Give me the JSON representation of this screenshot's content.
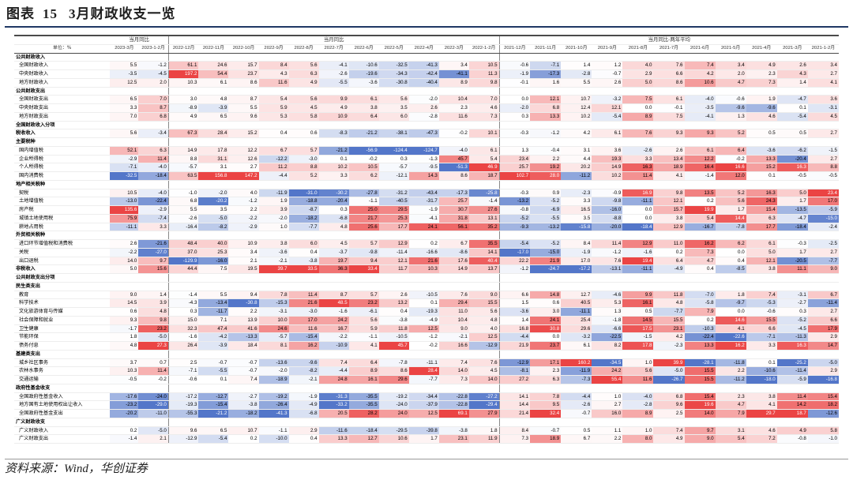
{
  "figure": {
    "label": "图表",
    "number": "15",
    "title": "3月财政收支一览"
  },
  "source": "资料来源：Wind，华创证券",
  "header": {
    "unit": "单位：%",
    "group_labels": [
      "当月同比",
      "当月同比",
      "当月同比-两年平均"
    ],
    "cols_a": [
      "2023-3月",
      "2023-1-2月"
    ],
    "cols_b": [
      "2022-12月",
      "2022-11月",
      "2022-10月",
      "2022-9月",
      "2022-8月",
      "2022-7月",
      "2022-6月",
      "2022-5月",
      "2022-4月",
      "2022-3月",
      "2022-1-2月"
    ],
    "cols_c": [
      "2021-12月",
      "2021-11月",
      "2021-10月",
      "2021-9月",
      "2021-8月",
      "2021-7月",
      "2021-6月",
      "2021-5月",
      "2021-4月",
      "2021-3月",
      "2021-1-2月"
    ]
  },
  "rows": [
    {
      "label": "公共财政收入",
      "type": "sec",
      "v": []
    },
    {
      "label": "全国财政收入",
      "type": "sub",
      "v": [
        "5.5",
        "-1.2",
        "61.1",
        "24.6",
        "15.7",
        "8.4",
        "5.6",
        "-4.1",
        "-10.6",
        "-32.5",
        "-41.3",
        "3.4",
        "10.5",
        "-0.6",
        "-7.1",
        "1.4",
        "1.2",
        "4.0",
        "7.6",
        "7.4",
        "3.4",
        "4.9",
        "2.6",
        "3.4"
      ]
    },
    {
      "label": "中央财政收入",
      "type": "sub",
      "v": [
        "-3.5",
        "-4.5",
        "197.2",
        "54.4",
        "23.7",
        "4.3",
        "6.3",
        "-2.6",
        "-19.6",
        "-34.3",
        "-42.4",
        "-41.1",
        "11.3",
        "-1.9",
        "-17.3",
        "-2.8",
        "-0.7",
        "2.9",
        "6.6",
        "4.2",
        "2.0",
        "2.3",
        "4.3",
        "2.7"
      ]
    },
    {
      "label": "地方财政收入",
      "type": "sub",
      "v": [
        "12.5",
        "2.0",
        "10.3",
        "6.1",
        "8.6",
        "11.6",
        "4.9",
        "-5.5",
        "-3.6",
        "-30.8",
        "-40.4",
        "8.9",
        "9.8",
        "-0.1",
        "1.6",
        "5.5",
        "2.6",
        "5.0",
        "8.6",
        "10.6",
        "4.7",
        "7.3",
        "1.4",
        "4.1"
      ]
    },
    {
      "label": "公共财政支出",
      "type": "sec",
      "v": []
    },
    {
      "label": "全国财政支出",
      "type": "sub",
      "v": [
        "6.5",
        "7.0",
        "3.0",
        "4.8",
        "8.7",
        "5.4",
        "5.6",
        "9.9",
        "6.1",
        "5.6",
        "-2.0",
        "10.4",
        "7.0",
        "0.0",
        "12.1",
        "10.7",
        "-3.2",
        "7.5",
        "6.1",
        "-4.0",
        "-0.6",
        "1.9",
        "-4.7",
        "3.6"
      ]
    },
    {
      "label": "中央财政支出",
      "type": "sub",
      "v": [
        "3.3",
        "8.7",
        "-8.9",
        "-3.9",
        "5.5",
        "5.9",
        "4.5",
        "4.9",
        "3.8",
        "3.5",
        "2.6",
        "2.3",
        "4.6",
        "-2.0",
        "6.8",
        "12.4",
        "12.1",
        "0.0",
        "-0.1",
        "-3.5",
        "-9.6",
        "-9.6",
        "0.1",
        "-3.1"
      ]
    },
    {
      "label": "地方财政支出",
      "type": "sub",
      "v": [
        "7.0",
        "6.8",
        "4.9",
        "6.5",
        "9.6",
        "5.3",
        "5.8",
        "10.9",
        "6.4",
        "6.0",
        "-2.8",
        "11.6",
        "7.3",
        "0.3",
        "13.3",
        "10.2",
        "-5.4",
        "8.9",
        "7.5",
        "-4.1",
        "1.3",
        "4.6",
        "-5.4",
        "4.5"
      ]
    },
    {
      "label": "全国财政收入分项",
      "type": "sec",
      "v": []
    },
    {
      "label": "税收收入",
      "type": "sec",
      "v": [
        "5.6",
        "-3.4",
        "67.3",
        "28.4",
        "15.2",
        "0.4",
        "0.6",
        "-8.3",
        "-21.2",
        "-38.1",
        "-47.3",
        "-0.2",
        "10.1",
        "-0.3",
        "-1.2",
        "4.2",
        "6.1",
        "7.6",
        "9.3",
        "9.3",
        "5.2",
        "0.5",
        "0.5",
        "2.7"
      ]
    },
    {
      "label": "主要税种",
      "type": "sec",
      "v": []
    },
    {
      "label": "国内增值税",
      "type": "sub",
      "v": [
        "52.1",
        "6.3",
        "14.9",
        "17.8",
        "12.2",
        "6.7",
        "5.7",
        "-21.2",
        "-56.9",
        "-124.4",
        "-124.7",
        "-4.0",
        "6.1",
        "1.3",
        "-0.4",
        "3.1",
        "3.6",
        "-2.6",
        "2.6",
        "6.1",
        "6.4",
        "-3.6",
        "-6.2",
        "-1.5"
      ]
    },
    {
      "label": "企业所得税",
      "type": "sub",
      "v": [
        "-2.9",
        "11.4",
        "8.8",
        "31.1",
        "12.6",
        "-12.2",
        "-3.0",
        "0.1",
        "-0.2",
        "0.3",
        "-1.3",
        "45.7",
        "5.4",
        "23.4",
        "2.2",
        "4.4",
        "19.3",
        "3.3",
        "13.4",
        "12.2",
        "-0.2",
        "13.3",
        "-20.4",
        "2.7"
      ]
    },
    {
      "label": "个人所得税",
      "type": "sub",
      "v": [
        "-7.1",
        "-4.0",
        "-5.7",
        "3.1",
        "2.7",
        "11.2",
        "8.8",
        "10.2",
        "10.5",
        "-5.7",
        "-9.5",
        "-51.3",
        "46.9",
        "25.7",
        "19.2",
        "20.2",
        "14.9",
        "16.3",
        "18.9",
        "16.4",
        "16.6",
        "15.2",
        "16.3",
        "8.8"
      ]
    },
    {
      "label": "国内消费税",
      "type": "sub",
      "v": [
        "-32.5",
        "-18.4",
        "63.5",
        "156.8",
        "147.2",
        "-4.4",
        "5.2",
        "3.3",
        "6.2",
        "-12.1",
        "14.3",
        "8.6",
        "18.7",
        "102.7",
        "28.0",
        "-11.2",
        "10.2",
        "11.4",
        "4.1",
        "-1.4",
        "12.0",
        "0.1",
        "-0.5",
        "-0.5"
      ]
    },
    {
      "label": "地产相关税种",
      "type": "sec",
      "v": []
    },
    {
      "label": "契税",
      "type": "sub",
      "v": [
        "10.5",
        "-4.0",
        "-1.0",
        "-2.0",
        "4.0",
        "-11.9",
        "-31.0",
        "-30.2",
        "-27.8",
        "-31.2",
        "-43.4",
        "-17.3",
        "-25.8",
        "-0.3",
        "0.9",
        "-2.3",
        "-0.9",
        "16.9",
        "9.8",
        "13.5",
        "5.2",
        "16.3",
        "5.0",
        "23.4"
      ]
    },
    {
      "label": "土地增值税",
      "type": "sub",
      "v": [
        "-13.0",
        "-22.4",
        "6.8",
        "-20.2",
        "-1.2",
        "1.9",
        "-18.8",
        "-20.4",
        "-1.1",
        "-40.5",
        "-31.7",
        "25.7",
        "-1.4",
        "-13.2",
        "-5.2",
        "3.3",
        "-9.8",
        "-11.1",
        "12.1",
        "0.2",
        "5.6",
        "24.3",
        "1.7",
        "17.0"
      ]
    },
    {
      "label": "房产税",
      "type": "sub",
      "v": [
        "135.6",
        "-2.9",
        "5.5",
        "3.5",
        "2.2",
        "3.9",
        "-8.7",
        "0.3",
        "25.0",
        "29.5",
        "-1.9",
        "30.7",
        "27.6",
        "-0.8",
        "-6.9",
        "16.5",
        "-16.0",
        "0.0",
        "15.7",
        "19.9",
        "1.7",
        "15.4",
        "-13.5",
        "-5.9"
      ]
    },
    {
      "label": "城镇土地使用税",
      "type": "sub",
      "v": [
        "75.9",
        "-7.4",
        "-2.6",
        "-5.0",
        "-2.2",
        "-2.0",
        "-18.2",
        "-6.8",
        "21.7",
        "25.3",
        "-4.1",
        "31.8",
        "13.1",
        "-5.2",
        "-5.5",
        "3.5",
        "-8.8",
        "0.0",
        "3.8",
        "5.4",
        "14.4",
        "6.3",
        "-4.7",
        "-15.0"
      ]
    },
    {
      "label": "耕地占用税",
      "type": "sub",
      "v": [
        "-11.1",
        "3.3",
        "-16.4",
        "-8.2",
        "-2.9",
        "1.0",
        "-7.7",
        "4.8",
        "25.6",
        "17.7",
        "24.1",
        "56.1",
        "35.2",
        "-9.3",
        "-13.2",
        "-15.8",
        "-20.0",
        "-18.4",
        "12.9",
        "-16.7",
        "-7.8",
        "17.7",
        "-18.4",
        "-2.4"
      ]
    },
    {
      "label": "外贸相关税种",
      "type": "sec",
      "v": []
    },
    {
      "label": "进口环节增值税和消费税",
      "type": "sub",
      "v": [
        "2.6",
        "-21.6",
        "48.4",
        "40.0",
        "10.9",
        "3.8",
        "6.0",
        "4.5",
        "5.7",
        "12.9",
        "0.2",
        "6.7",
        "35.5",
        "-5.4",
        "-5.2",
        "8.4",
        "11.4",
        "12.9",
        "11.0",
        "16.2",
        "6.2",
        "6.1",
        "-0.3",
        "-2.5"
      ]
    },
    {
      "label": "关税",
      "type": "sub",
      "v": [
        "-2.2",
        "-27.0",
        "37.0",
        "25.3",
        "3.4",
        "-3.6",
        "0.4",
        "-3.7",
        "-9.8",
        "-11.4",
        "-16.6",
        "-8.6",
        "14.1",
        "-17.0",
        "-15.0",
        "-1.9",
        "-1.2",
        "-1.6",
        "0.2",
        "7.3",
        "0.0",
        "5.0",
        "1.7",
        "2.7"
      ]
    },
    {
      "label": "出口退税",
      "type": "sub",
      "v": [
        "14.0",
        "9.7",
        "-129.9",
        "-16.0",
        "2.1",
        "-2.1",
        "-3.8",
        "19.7",
        "9.4",
        "12.1",
        "21.6",
        "17.6",
        "40.4",
        "22.2",
        "21.9",
        "17.0",
        "7.6",
        "19.4",
        "6.4",
        "4.7",
        "0.4",
        "12.1",
        "-20.5",
        "-7.7"
      ]
    },
    {
      "label": "非税收入",
      "type": "sec",
      "v": [
        "5.0",
        "15.6",
        "44.4",
        "7.5",
        "19.5",
        "39.7",
        "33.5",
        "36.3",
        "33.4",
        "11.7",
        "10.3",
        "14.9",
        "13.7",
        "-1.2",
        "-24.7",
        "-17.2",
        "-13.1",
        "-11.1",
        "-4.9",
        "0.4",
        "-8.5",
        "3.8",
        "11.1",
        "9.0"
      ]
    },
    {
      "label": "公共财政支出分项",
      "type": "sec",
      "v": []
    },
    {
      "label": "民生类支出",
      "type": "sec",
      "v": []
    },
    {
      "label": "教育",
      "type": "sub",
      "v": [
        "9.0",
        "1.4",
        "-1.4",
        "5.5",
        "9.4",
        "7.8",
        "11.4",
        "8.7",
        "5.7",
        "2.6",
        "-10.5",
        "7.6",
        "9.0",
        "6.6",
        "14.8",
        "12.7",
        "-4.6",
        "9.9",
        "11.8",
        "-7.0",
        "1.8",
        "7.4",
        "-3.1",
        "6.7"
      ]
    },
    {
      "label": "科学技术",
      "type": "sub",
      "v": [
        "14.5",
        "3.9",
        "-4.3",
        "-13.4",
        "-30.8",
        "-15.3",
        "21.6",
        "48.5",
        "23.2",
        "13.2",
        "0.1",
        "29.4",
        "15.5",
        "1.5",
        "0.6",
        "40.5",
        "5.3",
        "16.1",
        "4.8",
        "-5.8",
        "-9.7",
        "-5.3",
        "-2.7",
        "-11.4"
      ]
    },
    {
      "label": "文化旅游体育与传媒",
      "type": "sub",
      "v": [
        "0.6",
        "4.8",
        "0.3",
        "-11.7",
        "2.2",
        "-3.1",
        "-3.0",
        "-1.6",
        "-6.1",
        "0.4",
        "-19.3",
        "11.0",
        "5.6",
        "-3.6",
        "3.0",
        "-11.1",
        "1.3",
        "0.5",
        "-7.7",
        "7.9",
        "0.0",
        "-0.6",
        "0.3",
        "2.7"
      ]
    },
    {
      "label": "社会保障和就业",
      "type": "sub",
      "v": [
        "9.3",
        "9.8",
        "15.0",
        "7.1",
        "13.9",
        "10.0",
        "17.0",
        "24.2",
        "5.6",
        "-3.8",
        "-4.9",
        "10.4",
        "4.8",
        "1.4",
        "24.1",
        "25.4",
        "-1.8",
        "14.5",
        "15.5",
        "0.2",
        "14.6",
        "15.5",
        "-5.2",
        "6.6"
      ]
    },
    {
      "label": "卫生健康",
      "type": "sub",
      "v": [
        "-1.7",
        "23.2",
        "32.3",
        "47.4",
        "41.6",
        "24.6",
        "11.6",
        "16.7",
        "5.9",
        "11.8",
        "12.5",
        "9.0",
        "4.0",
        "16.8",
        "30.8",
        "29.6",
        "-6.6",
        "17.5",
        "23.1",
        "-10.3",
        "4.1",
        "6.6",
        "-4.5",
        "17.9"
      ]
    },
    {
      "label": "节能环保",
      "type": "sub",
      "v": [
        "1.8",
        "-5.0",
        "-1.6",
        "-4.2",
        "-13.3",
        "-5.7",
        "-15.4",
        "-2.2",
        "-1.1",
        "-10.5",
        "-1.2",
        "-2.1",
        "12.5",
        "-4.4",
        "0.0",
        "-3.2",
        "-22.5",
        "-1.5",
        "4.2",
        "-22.4",
        "-22.6",
        "-7.1",
        "-11.3",
        "2.9"
      ]
    },
    {
      "label": "债务付息",
      "type": "sub",
      "v": [
        "4.8",
        "27.3",
        "26.4",
        "-3.9",
        "18.4",
        "8.1",
        "16.2",
        "-10.9",
        "4.1",
        "45.7",
        "-0.2",
        "16.6",
        "-12.9",
        "21.9",
        "23.7",
        "6.1",
        "8.2",
        "17.8",
        "-2.3",
        "13.3",
        "16.2",
        "3.3",
        "16.3",
        "14.7"
      ]
    },
    {
      "label": "基建类支出",
      "type": "sec",
      "v": []
    },
    {
      "label": "城乡社区事务",
      "type": "sub",
      "v": [
        "3.7",
        "0.7",
        "2.5",
        "-0.7",
        "-0.7",
        "-13.6",
        "-9.6",
        "7.4",
        "6.4",
        "-7.8",
        "-11.1",
        "7.4",
        "7.6",
        "-12.9",
        "17.1",
        "160.2",
        "-34.5",
        "1.0",
        "39.9",
        "-28.1",
        "-11.8",
        "0.1",
        "-25.2",
        "-5.0"
      ]
    },
    {
      "label": "农林水事务",
      "type": "sub",
      "v": [
        "10.3",
        "11.4",
        "-7.1",
        "-5.5",
        "-0.7",
        "-2.0",
        "-8.2",
        "-4.4",
        "8.9",
        "8.6",
        "28.4",
        "14.0",
        "4.5",
        "-8.1",
        "2.3",
        "-11.9",
        "24.2",
        "5.6",
        "-5.0",
        "15.5",
        "2.2",
        "-10.6",
        "-11.4",
        "2.9"
      ]
    },
    {
      "label": "交通运输",
      "type": "sub",
      "v": [
        "-0.5",
        "-0.2",
        "-0.6",
        "0.1",
        "7.4",
        "-18.9",
        "-2.1",
        "24.8",
        "16.1",
        "29.6",
        "-7.7",
        "7.3",
        "14.0",
        "27.2",
        "6.3",
        "-7.3",
        "55.4",
        "11.6",
        "-26.7",
        "15.5",
        "-11.2",
        "-18.0",
        "-5.9",
        "-16.8"
      ]
    },
    {
      "label": "政府性基金收支",
      "type": "sec",
      "v": []
    },
    {
      "label": "全国政府性基金收入",
      "type": "sub",
      "v": [
        "-17.6",
        "-24.0",
        "-17.2",
        "-12.7",
        "-2.7",
        "-19.2",
        "-1.9",
        "-31.3",
        "-35.5",
        "-19.2",
        "-34.4",
        "-22.8",
        "-27.2",
        "14.1",
        "7.8",
        "-4.4",
        "1.0",
        "-4.0",
        "6.8",
        "15.4",
        "2.3",
        "3.8",
        "11.4",
        "15.4"
      ]
    },
    {
      "label": "地方国有土地使用权出让收入",
      "type": "sub",
      "v": [
        "-23.2",
        "-29.0",
        "-19.3",
        "-15.4",
        "-3.8",
        "-26.4",
        "-4.9",
        "-33.2",
        "-35.5",
        "-24.0",
        "-37.9",
        "-22.8",
        "-29.4",
        "14.4",
        "9.5",
        "-2.6",
        "2.7",
        "-2.8",
        "9.6",
        "19.6",
        "4.7",
        "4.1",
        "14.2",
        "18.2"
      ]
    },
    {
      "label": "全国政府性基金支出",
      "type": "sub",
      "v": [
        "-20.2",
        "-11.0",
        "-55.3",
        "-21.2",
        "-18.2",
        "-41.3",
        "-6.8",
        "20.5",
        "28.2",
        "24.0",
        "12.5",
        "69.1",
        "27.9",
        "21.4",
        "32.4",
        "-0.7",
        "16.0",
        "8.9",
        "2.5",
        "14.0",
        "7.9",
        "29.7",
        "18.7",
        "-12.6"
      ]
    },
    {
      "label": "广义财政收支",
      "type": "sec",
      "v": []
    },
    {
      "label": "广义财政收入",
      "type": "sub",
      "v": [
        "0.2",
        "-5.0",
        "9.6",
        "6.5",
        "10.7",
        "-1.1",
        "2.9",
        "-11.6",
        "-18.4",
        "-29.5",
        "-39.8",
        "-3.8",
        "1.8",
        "8.4",
        "-0.7",
        "0.5",
        "1.1",
        "1.0",
        "7.4",
        "9.7",
        "3.1",
        "4.6",
        "4.9",
        "5.8"
      ]
    },
    {
      "label": "广义财政支出",
      "type": "sub",
      "v": [
        "-1.4",
        "2.1",
        "-12.9",
        "-5.4",
        "0.2",
        "-10.0",
        "0.4",
        "13.3",
        "12.7",
        "10.6",
        "1.7",
        "23.1",
        "11.9",
        "7.3",
        "18.9",
        "6.7",
        "2.2",
        "8.0",
        "4.9",
        "9.0",
        "5.4",
        "7.2",
        "-0.8",
        "-1.0"
      ]
    }
  ],
  "colors": {
    "positive_max": "#ea3a3a",
    "negative_max": "#4a6fc6",
    "neutral": "#ffffff"
  }
}
